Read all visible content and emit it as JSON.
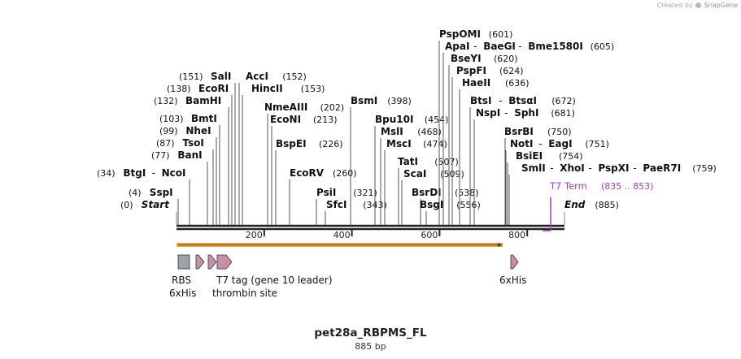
{
  "credit": {
    "prefix": "Created by",
    "brand": "SnapGene"
  },
  "plasmid": {
    "name": "pet28a_RBPMS_FL",
    "length_label": "885 bp"
  },
  "sequence_length": 885,
  "scale": {
    "ticks": [
      200,
      400,
      600,
      800
    ]
  },
  "terminator": {
    "name": "T7 Term",
    "coords": "(835 .. 853)",
    "color": "#a23cc8"
  },
  "sites": [
    {
      "pos": "(0)",
      "names": [
        "Start"
      ],
      "italic": true
    },
    {
      "pos": "(4)",
      "names": [
        "SspI"
      ]
    },
    {
      "pos": "(34)",
      "names": [
        "BtgI",
        "NcoI"
      ]
    },
    {
      "pos": "(77)",
      "names": [
        "BanI"
      ]
    },
    {
      "pos": "(87)",
      "names": [
        "TsoI"
      ]
    },
    {
      "pos": "(99)",
      "names": [
        "NheI"
      ]
    },
    {
      "pos": "(103)",
      "names": [
        "BmtI"
      ]
    },
    {
      "pos": "(132)",
      "names": [
        "BamHI"
      ]
    },
    {
      "pos": "(138)",
      "names": [
        "EcoRI"
      ]
    },
    {
      "pos": "(151)",
      "names": [
        "SalI"
      ]
    },
    {
      "pos": "(152)",
      "names": [
        "AccI"
      ]
    },
    {
      "pos": "(153)",
      "names": [
        "HincII"
      ]
    },
    {
      "pos": "(202)",
      "names": [
        "NmeAIII"
      ]
    },
    {
      "pos": "(213)",
      "names": [
        "EcoNI"
      ]
    },
    {
      "pos": "(226)",
      "names": [
        "BspEI"
      ]
    },
    {
      "pos": "(260)",
      "names": [
        "EcoRV"
      ]
    },
    {
      "pos": "(321)",
      "names": [
        "PsiI"
      ]
    },
    {
      "pos": "(343)",
      "names": [
        "SfcI"
      ]
    },
    {
      "pos": "(398)",
      "names": [
        "BsmI"
      ]
    },
    {
      "pos": "(454)",
      "names": [
        "Bpu10I"
      ]
    },
    {
      "pos": "(468)",
      "names": [
        "MslI"
      ]
    },
    {
      "pos": "(474)",
      "names": [
        "MscI"
      ]
    },
    {
      "pos": "(507)",
      "names": [
        "TatI"
      ]
    },
    {
      "pos": "(509)",
      "names": [
        "ScaI"
      ]
    },
    {
      "pos": "(538)",
      "names": [
        "BsrDI"
      ]
    },
    {
      "pos": "(556)",
      "names": [
        "BsgI"
      ]
    },
    {
      "pos": "(601)",
      "names": [
        "PspOMI"
      ]
    },
    {
      "pos": "(605)",
      "names": [
        "ApaI",
        "BaeGI",
        "Bme1580I"
      ]
    },
    {
      "pos": "(620)",
      "names": [
        "BseYI"
      ]
    },
    {
      "pos": "(624)",
      "names": [
        "PspFI"
      ]
    },
    {
      "pos": "(636)",
      "names": [
        "HaeII"
      ]
    },
    {
      "pos": "(672)",
      "names": [
        "BtsI",
        "BtsαI"
      ]
    },
    {
      "pos": "(681)",
      "names": [
        "NspI",
        "SphI"
      ]
    },
    {
      "pos": "(750)",
      "names": [
        "BsrBI"
      ]
    },
    {
      "pos": "(751)",
      "names": [
        "NotI",
        "EagI"
      ]
    },
    {
      "pos": "(754)",
      "names": [
        "BsiEI"
      ]
    },
    {
      "pos": "(759)",
      "names": [
        "SmlI",
        "XhoI",
        "PspXI",
        "PaeR7I"
      ]
    },
    {
      "pos": "(885)",
      "names": [
        "End"
      ],
      "italic": true
    }
  ],
  "features": [
    {
      "label": "RBS",
      "shape": "box",
      "color": "#9ea3a8"
    },
    {
      "label": "6xHis",
      "shape": "arrow",
      "color": "#c98fa8"
    },
    {
      "label": "T7 tag (gene 10 leader)",
      "shape": "arrow",
      "color": "#c98fa8"
    },
    {
      "label": "thrombin site",
      "shape": "arrow",
      "color": "#c98fa8"
    },
    {
      "label": "6xHis",
      "shape": "arrow",
      "color": "#c98fa8"
    }
  ],
  "orf": {
    "color": "#f2a23a"
  }
}
